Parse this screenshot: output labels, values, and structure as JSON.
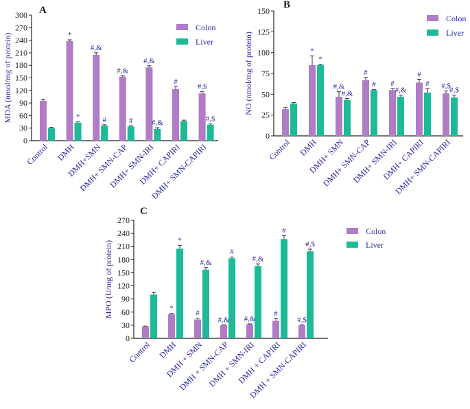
{
  "colors": {
    "colon": "#b07cc6",
    "liver": "#1dba98",
    "text": "#2a2aa8",
    "axis": "#222222",
    "error": "#333333"
  },
  "chart_data": [
    {
      "panel": "A",
      "type": "bar",
      "title": "",
      "ylabel": "MDA (nmol/mg of protein)",
      "xlabel": "",
      "ylim": [
        0,
        300
      ],
      "yticks": [
        0,
        30,
        60,
        90,
        120,
        150,
        180,
        210,
        240,
        270,
        300
      ],
      "categories": [
        "Control",
        "DMH",
        "DMH+SMN",
        "DMH+ SMN-CAP",
        "DMH+ SMN-IRI",
        "DMH+ CAPIRI",
        "DMH+ SMN-CAPIRI"
      ],
      "legend_position": "top-right",
      "series": [
        {
          "name": "Colon",
          "values": [
            95,
            238,
            205,
            153,
            175,
            123,
            113
          ],
          "errors": [
            4,
            3,
            5,
            2,
            4,
            6,
            4
          ],
          "labels": [
            "",
            "*",
            "#,&",
            "#,&",
            "#,&",
            "#",
            "#,$"
          ]
        },
        {
          "name": "Liver",
          "values": [
            30,
            43,
            36,
            34,
            28,
            47,
            38
          ],
          "errors": [
            2,
            2,
            2,
            2,
            3,
            2,
            2
          ],
          "labels": [
            "",
            "*",
            "#",
            "#",
            "#,&",
            "",
            "#,$"
          ]
        }
      ]
    },
    {
      "panel": "B",
      "type": "bar",
      "title": "",
      "ylabel": "NO (nmol/mg of protein)",
      "xlabel": "",
      "ylim": [
        0,
        150
      ],
      "yticks": [
        0,
        25,
        50,
        75,
        100,
        125,
        150
      ],
      "categories": [
        "Control",
        "DMH",
        "DMH+ SMN",
        "DMH+ SMN-CAP",
        "DMH+ SMN-IRI",
        "DMH+ CAPIRI",
        "DMH+ SMN-CAPIRI"
      ],
      "legend_position": "top-right",
      "series": [
        {
          "name": "Colon",
          "values": [
            32,
            85,
            47,
            67,
            55,
            64,
            51
          ],
          "errors": [
            2,
            11,
            6,
            3,
            2,
            4,
            3
          ],
          "labels": [
            "",
            "*",
            "#,&",
            "#",
            "#",
            "#",
            "#,$"
          ]
        },
        {
          "name": "Liver",
          "values": [
            39,
            85,
            43,
            55,
            47,
            52,
            46
          ],
          "errors": [
            1,
            1,
            2,
            0.5,
            2,
            5,
            3
          ],
          "labels": [
            "",
            "*",
            "#,&",
            "#",
            "#,&",
            "#",
            "#,$"
          ]
        }
      ]
    },
    {
      "panel": "C",
      "type": "bar",
      "title": "",
      "ylabel": "MPO (U/mg of protein)",
      "xlabel": "",
      "ylim": [
        0,
        270
      ],
      "yticks": [
        0,
        30,
        60,
        90,
        120,
        150,
        180,
        210,
        240,
        270
      ],
      "categories": [
        "Control",
        "DMH",
        "DMH + SMN",
        "DMH + SMN-CAP",
        "DMH + SMN-IRI",
        "DMH + CAPIRI",
        "DMH + SMN-CAPIRI"
      ],
      "legend_position": "top-right",
      "series": [
        {
          "name": "Colon",
          "values": [
            27,
            55,
            43,
            30,
            32,
            40,
            30
          ],
          "errors": [
            1,
            2,
            3,
            1,
            1,
            5,
            1
          ],
          "labels": [
            "",
            "*",
            "#",
            "#,&",
            "#,&",
            "#",
            "#,$"
          ]
        },
        {
          "name": "Liver",
          "values": [
            100,
            205,
            157,
            183,
            165,
            227,
            199
          ],
          "errors": [
            5,
            8,
            5,
            3,
            5,
            8,
            5
          ],
          "labels": [
            "",
            "*",
            "#,&",
            "#",
            "#,&",
            "#",
            "#,$"
          ]
        }
      ]
    }
  ]
}
